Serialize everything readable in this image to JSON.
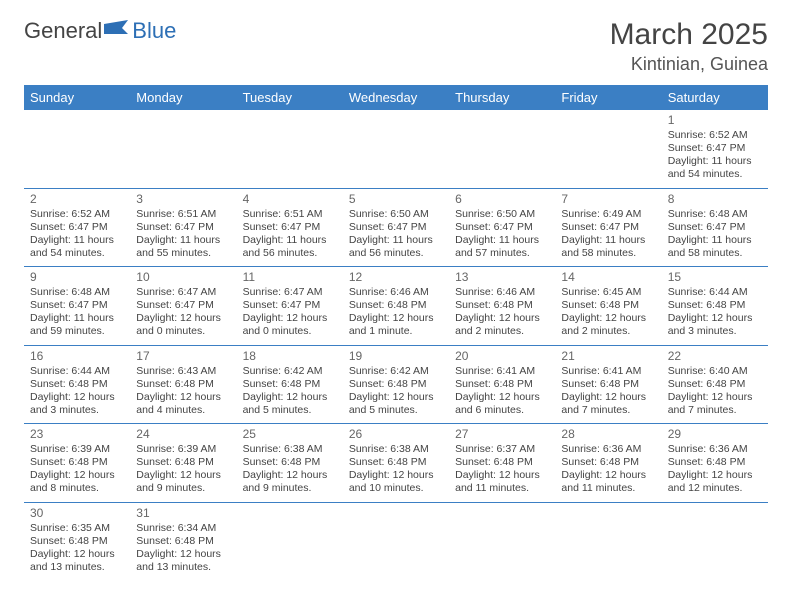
{
  "brand": {
    "part1": "General",
    "part2": "Blue"
  },
  "title": "March 2025",
  "location": "Kintinian, Guinea",
  "colors": {
    "header_bg": "#3b7fc4",
    "header_text": "#ffffff",
    "border": "#3b7fc4",
    "text": "#444444"
  },
  "dow": [
    "Sunday",
    "Monday",
    "Tuesday",
    "Wednesday",
    "Thursday",
    "Friday",
    "Saturday"
  ],
  "weeks": [
    [
      null,
      null,
      null,
      null,
      null,
      null,
      {
        "n": "1",
        "sr": "Sunrise: 6:52 AM",
        "ss": "Sunset: 6:47 PM",
        "dl": "Daylight: 11 hours and 54 minutes."
      }
    ],
    [
      {
        "n": "2",
        "sr": "Sunrise: 6:52 AM",
        "ss": "Sunset: 6:47 PM",
        "dl": "Daylight: 11 hours and 54 minutes."
      },
      {
        "n": "3",
        "sr": "Sunrise: 6:51 AM",
        "ss": "Sunset: 6:47 PM",
        "dl": "Daylight: 11 hours and 55 minutes."
      },
      {
        "n": "4",
        "sr": "Sunrise: 6:51 AM",
        "ss": "Sunset: 6:47 PM",
        "dl": "Daylight: 11 hours and 56 minutes."
      },
      {
        "n": "5",
        "sr": "Sunrise: 6:50 AM",
        "ss": "Sunset: 6:47 PM",
        "dl": "Daylight: 11 hours and 56 minutes."
      },
      {
        "n": "6",
        "sr": "Sunrise: 6:50 AM",
        "ss": "Sunset: 6:47 PM",
        "dl": "Daylight: 11 hours and 57 minutes."
      },
      {
        "n": "7",
        "sr": "Sunrise: 6:49 AM",
        "ss": "Sunset: 6:47 PM",
        "dl": "Daylight: 11 hours and 58 minutes."
      },
      {
        "n": "8",
        "sr": "Sunrise: 6:48 AM",
        "ss": "Sunset: 6:47 PM",
        "dl": "Daylight: 11 hours and 58 minutes."
      }
    ],
    [
      {
        "n": "9",
        "sr": "Sunrise: 6:48 AM",
        "ss": "Sunset: 6:47 PM",
        "dl": "Daylight: 11 hours and 59 minutes."
      },
      {
        "n": "10",
        "sr": "Sunrise: 6:47 AM",
        "ss": "Sunset: 6:47 PM",
        "dl": "Daylight: 12 hours and 0 minutes."
      },
      {
        "n": "11",
        "sr": "Sunrise: 6:47 AM",
        "ss": "Sunset: 6:47 PM",
        "dl": "Daylight: 12 hours and 0 minutes."
      },
      {
        "n": "12",
        "sr": "Sunrise: 6:46 AM",
        "ss": "Sunset: 6:48 PM",
        "dl": "Daylight: 12 hours and 1 minute."
      },
      {
        "n": "13",
        "sr": "Sunrise: 6:46 AM",
        "ss": "Sunset: 6:48 PM",
        "dl": "Daylight: 12 hours and 2 minutes."
      },
      {
        "n": "14",
        "sr": "Sunrise: 6:45 AM",
        "ss": "Sunset: 6:48 PM",
        "dl": "Daylight: 12 hours and 2 minutes."
      },
      {
        "n": "15",
        "sr": "Sunrise: 6:44 AM",
        "ss": "Sunset: 6:48 PM",
        "dl": "Daylight: 12 hours and 3 minutes."
      }
    ],
    [
      {
        "n": "16",
        "sr": "Sunrise: 6:44 AM",
        "ss": "Sunset: 6:48 PM",
        "dl": "Daylight: 12 hours and 3 minutes."
      },
      {
        "n": "17",
        "sr": "Sunrise: 6:43 AM",
        "ss": "Sunset: 6:48 PM",
        "dl": "Daylight: 12 hours and 4 minutes."
      },
      {
        "n": "18",
        "sr": "Sunrise: 6:42 AM",
        "ss": "Sunset: 6:48 PM",
        "dl": "Daylight: 12 hours and 5 minutes."
      },
      {
        "n": "19",
        "sr": "Sunrise: 6:42 AM",
        "ss": "Sunset: 6:48 PM",
        "dl": "Daylight: 12 hours and 5 minutes."
      },
      {
        "n": "20",
        "sr": "Sunrise: 6:41 AM",
        "ss": "Sunset: 6:48 PM",
        "dl": "Daylight: 12 hours and 6 minutes."
      },
      {
        "n": "21",
        "sr": "Sunrise: 6:41 AM",
        "ss": "Sunset: 6:48 PM",
        "dl": "Daylight: 12 hours and 7 minutes."
      },
      {
        "n": "22",
        "sr": "Sunrise: 6:40 AM",
        "ss": "Sunset: 6:48 PM",
        "dl": "Daylight: 12 hours and 7 minutes."
      }
    ],
    [
      {
        "n": "23",
        "sr": "Sunrise: 6:39 AM",
        "ss": "Sunset: 6:48 PM",
        "dl": "Daylight: 12 hours and 8 minutes."
      },
      {
        "n": "24",
        "sr": "Sunrise: 6:39 AM",
        "ss": "Sunset: 6:48 PM",
        "dl": "Daylight: 12 hours and 9 minutes."
      },
      {
        "n": "25",
        "sr": "Sunrise: 6:38 AM",
        "ss": "Sunset: 6:48 PM",
        "dl": "Daylight: 12 hours and 9 minutes."
      },
      {
        "n": "26",
        "sr": "Sunrise: 6:38 AM",
        "ss": "Sunset: 6:48 PM",
        "dl": "Daylight: 12 hours and 10 minutes."
      },
      {
        "n": "27",
        "sr": "Sunrise: 6:37 AM",
        "ss": "Sunset: 6:48 PM",
        "dl": "Daylight: 12 hours and 11 minutes."
      },
      {
        "n": "28",
        "sr": "Sunrise: 6:36 AM",
        "ss": "Sunset: 6:48 PM",
        "dl": "Daylight: 12 hours and 11 minutes."
      },
      {
        "n": "29",
        "sr": "Sunrise: 6:36 AM",
        "ss": "Sunset: 6:48 PM",
        "dl": "Daylight: 12 hours and 12 minutes."
      }
    ],
    [
      {
        "n": "30",
        "sr": "Sunrise: 6:35 AM",
        "ss": "Sunset: 6:48 PM",
        "dl": "Daylight: 12 hours and 13 minutes."
      },
      {
        "n": "31",
        "sr": "Sunrise: 6:34 AM",
        "ss": "Sunset: 6:48 PM",
        "dl": "Daylight: 12 hours and 13 minutes."
      },
      null,
      null,
      null,
      null,
      null
    ]
  ]
}
